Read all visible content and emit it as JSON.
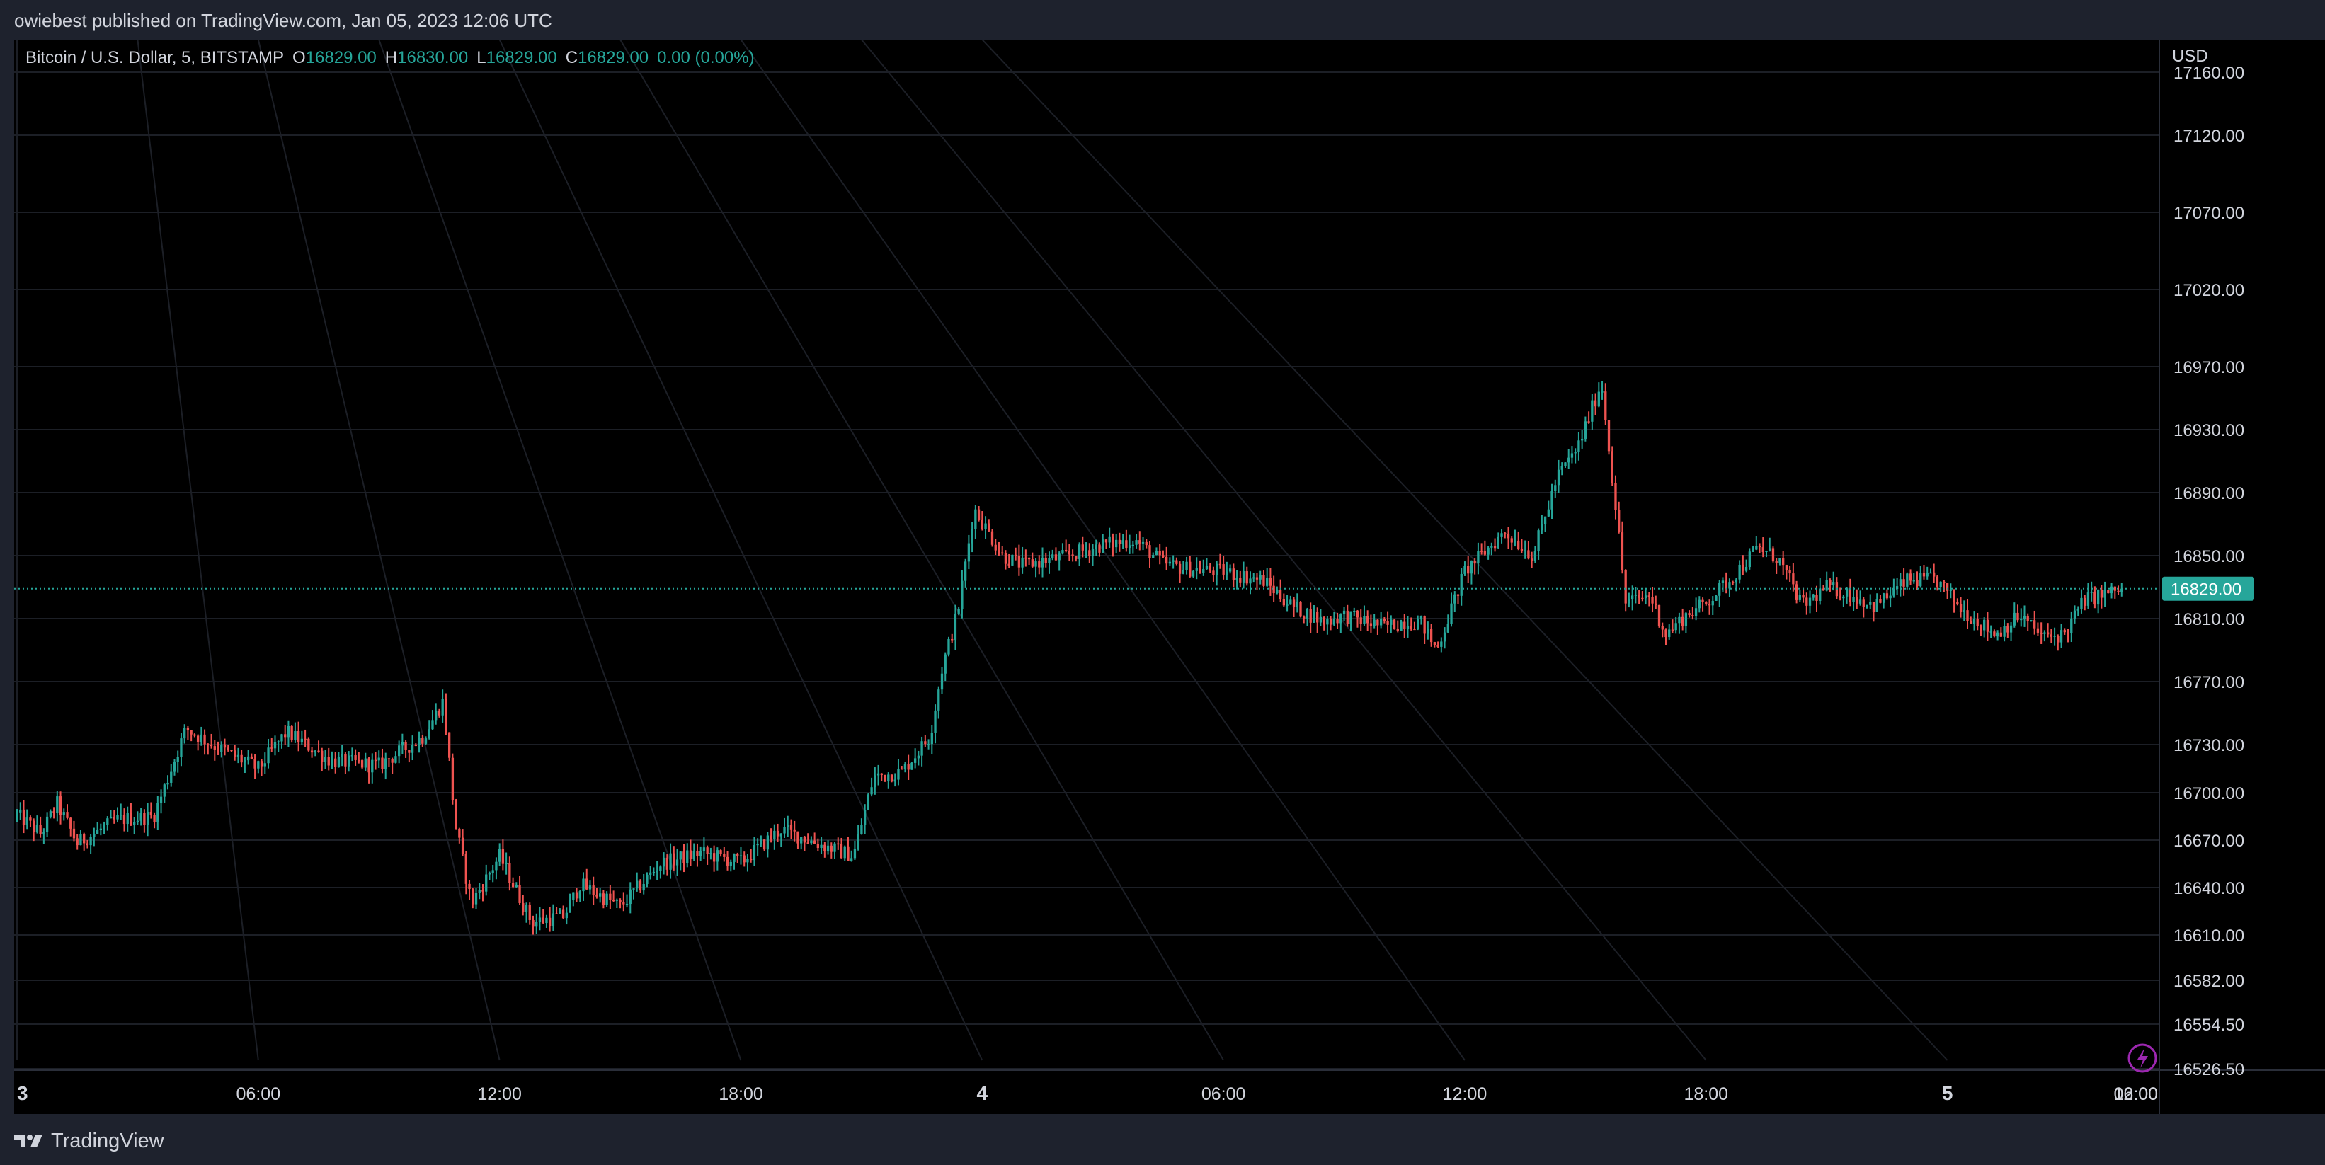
{
  "header": {
    "published_text": "owiebest published on TradingView.com, Jan 05, 2023 12:06 UTC"
  },
  "legend": {
    "symbol": "Bitcoin / U.S. Dollar, 5, BITSTAMP",
    "o_label": "O",
    "o_value": "16829.00",
    "h_label": "H",
    "h_value": "16830.00",
    "l_label": "L",
    "l_value": "16829.00",
    "c_label": "C",
    "c_value": "16829.00",
    "change": "0.00 (0.00%)"
  },
  "currency_label": "USD",
  "footer": {
    "brand": "TradingView"
  },
  "colors": {
    "up": "#26a69a",
    "down": "#ef5350",
    "grid": "#1c1f26",
    "background": "#000000",
    "text": "#d1d4dc",
    "price_tag": "#26a69a",
    "alert_icon": "#9c27b0"
  },
  "chart_data": {
    "type": "candlestick",
    "interval": "5",
    "exchange": "BITSTAMP",
    "y_ticks": [
      "17160.00",
      "17120.00",
      "17070.00",
      "17020.00",
      "16970.00",
      "16930.00",
      "16890.00",
      "16850.00",
      "16810.00",
      "16770.00",
      "16730.00",
      "16700.00",
      "16670.00",
      "16640.00",
      "16610.00",
      "16582.00",
      "16554.50",
      "16526.50"
    ],
    "x_ticks": [
      "3",
      "06:00",
      "12:00",
      "18:00",
      "4",
      "06:00",
      "12:00",
      "18:00",
      "5",
      "06:00",
      "12:00"
    ],
    "last_price": "16829.00",
    "key_points": [
      {
        "t": 0.0,
        "p": 16686
      },
      {
        "t": 0.6,
        "p": 16674
      },
      {
        "t": 1.0,
        "p": 16693
      },
      {
        "t": 1.5,
        "p": 16668
      },
      {
        "t": 2.5,
        "p": 16683
      },
      {
        "t": 3.4,
        "p": 16685
      },
      {
        "t": 4.2,
        "p": 16740
      },
      {
        "t": 5.0,
        "p": 16728
      },
      {
        "t": 6.0,
        "p": 16715
      },
      {
        "t": 6.7,
        "p": 16738
      },
      {
        "t": 7.8,
        "p": 16720
      },
      {
        "t": 9.0,
        "p": 16717
      },
      {
        "t": 10.1,
        "p": 16735
      },
      {
        "t": 10.6,
        "p": 16758
      },
      {
        "t": 10.9,
        "p": 16680
      },
      {
        "t": 11.3,
        "p": 16630
      },
      {
        "t": 12.0,
        "p": 16660
      },
      {
        "t": 12.8,
        "p": 16618
      },
      {
        "t": 13.6,
        "p": 16622
      },
      {
        "t": 14.0,
        "p": 16642
      },
      {
        "t": 15.0,
        "p": 16628
      },
      {
        "t": 16.0,
        "p": 16655
      },
      {
        "t": 17.0,
        "p": 16662
      },
      {
        "t": 18.0,
        "p": 16656
      },
      {
        "t": 19.0,
        "p": 16677
      },
      {
        "t": 20.0,
        "p": 16667
      },
      {
        "t": 20.8,
        "p": 16660
      },
      {
        "t": 21.3,
        "p": 16710
      },
      {
        "t": 22.0,
        "p": 16713
      },
      {
        "t": 22.7,
        "p": 16735
      },
      {
        "t": 23.0,
        "p": 16778
      },
      {
        "t": 23.4,
        "p": 16815
      },
      {
        "t": 23.8,
        "p": 16880
      },
      {
        "t": 24.5,
        "p": 16850
      },
      {
        "t": 25.0,
        "p": 16844
      },
      {
        "t": 26.0,
        "p": 16849
      },
      {
        "t": 27.0,
        "p": 16857
      },
      {
        "t": 27.8,
        "p": 16860
      },
      {
        "t": 28.5,
        "p": 16845
      },
      {
        "t": 29.0,
        "p": 16842
      },
      {
        "t": 30.0,
        "p": 16840
      },
      {
        "t": 31.0,
        "p": 16834
      },
      {
        "t": 31.7,
        "p": 16818
      },
      {
        "t": 32.5,
        "p": 16808
      },
      {
        "t": 33.0,
        "p": 16812
      },
      {
        "t": 34.0,
        "p": 16805
      },
      {
        "t": 34.5,
        "p": 16808
      },
      {
        "t": 34.9,
        "p": 16808
      },
      {
        "t": 35.3,
        "p": 16790
      },
      {
        "t": 36.0,
        "p": 16840
      },
      {
        "t": 37.0,
        "p": 16865
      },
      {
        "t": 37.7,
        "p": 16850
      },
      {
        "t": 38.3,
        "p": 16900
      },
      {
        "t": 38.8,
        "p": 16918
      },
      {
        "t": 39.4,
        "p": 16960
      },
      {
        "t": 39.8,
        "p": 16870
      },
      {
        "t": 40.0,
        "p": 16820
      },
      {
        "t": 40.6,
        "p": 16825
      },
      {
        "t": 41.0,
        "p": 16800
      },
      {
        "t": 41.5,
        "p": 16812
      },
      {
        "t": 42.0,
        "p": 16820
      },
      {
        "t": 42.6,
        "p": 16835
      },
      {
        "t": 43.3,
        "p": 16855
      },
      {
        "t": 43.8,
        "p": 16848
      },
      {
        "t": 44.4,
        "p": 16818
      },
      {
        "t": 45.0,
        "p": 16830
      },
      {
        "t": 45.5,
        "p": 16826
      },
      {
        "t": 46.2,
        "p": 16818
      },
      {
        "t": 47.0,
        "p": 16834
      },
      {
        "t": 47.7,
        "p": 16835
      },
      {
        "t": 48.4,
        "p": 16815
      },
      {
        "t": 49.2,
        "p": 16800
      },
      {
        "t": 49.8,
        "p": 16812
      },
      {
        "t": 50.4,
        "p": 16798
      },
      {
        "t": 50.9,
        "p": 16800
      },
      {
        "t": 51.4,
        "p": 16822
      },
      {
        "t": 52.0,
        "p": 16826
      },
      {
        "t": 52.4,
        "p": 16829
      }
    ]
  }
}
